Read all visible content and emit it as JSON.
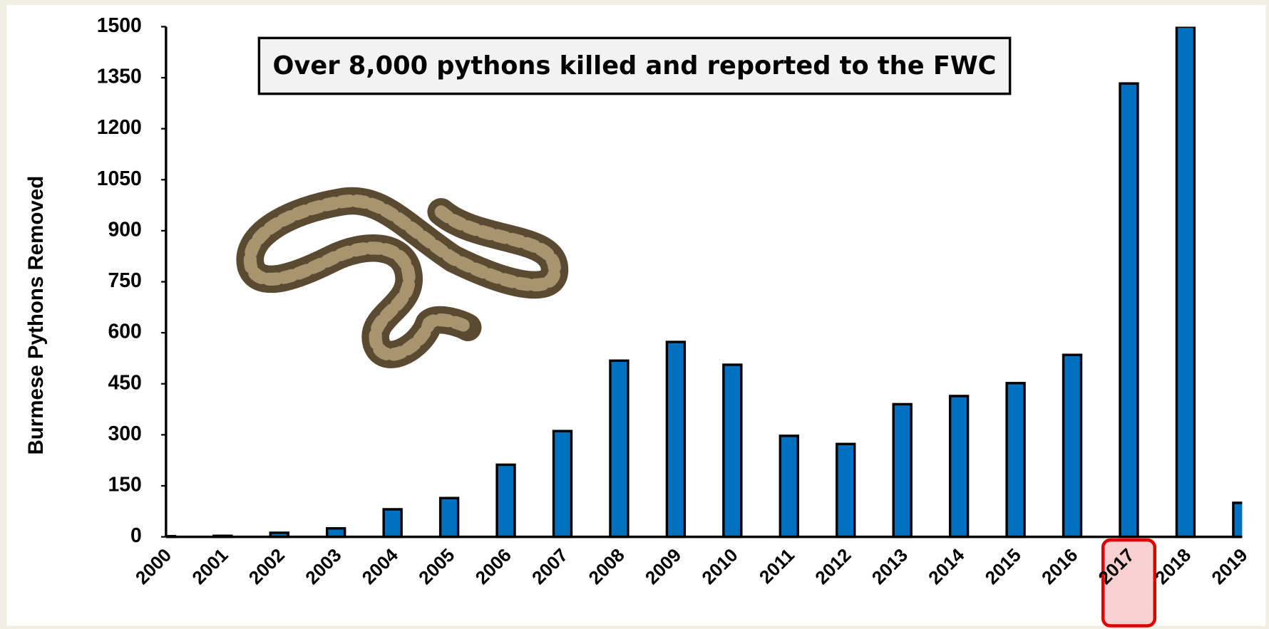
{
  "chart_data": {
    "type": "bar",
    "y_label": "Burmese Pythons Removed",
    "annotation": "Over 8,000 pythons killed and reported to the FWC",
    "categories": [
      "2000",
      "2001",
      "2002",
      "2003",
      "2004",
      "2005",
      "2006",
      "2007",
      "2008",
      "2009",
      "2010",
      "2011",
      "2012",
      "2013",
      "2014",
      "2015",
      "2016",
      "2017",
      "2018",
      "2019"
    ],
    "values": [
      2,
      3,
      12,
      25,
      81,
      114,
      212,
      311,
      518,
      573,
      506,
      297,
      273,
      390,
      414,
      452,
      535,
      1333,
      1500,
      100
    ],
    "color": "#0070c0",
    "ylim": [
      0,
      1500
    ],
    "yticks": [
      0,
      150,
      300,
      450,
      600,
      750,
      900,
      1050,
      1200,
      1350,
      1500
    ],
    "grid": false
  }
}
